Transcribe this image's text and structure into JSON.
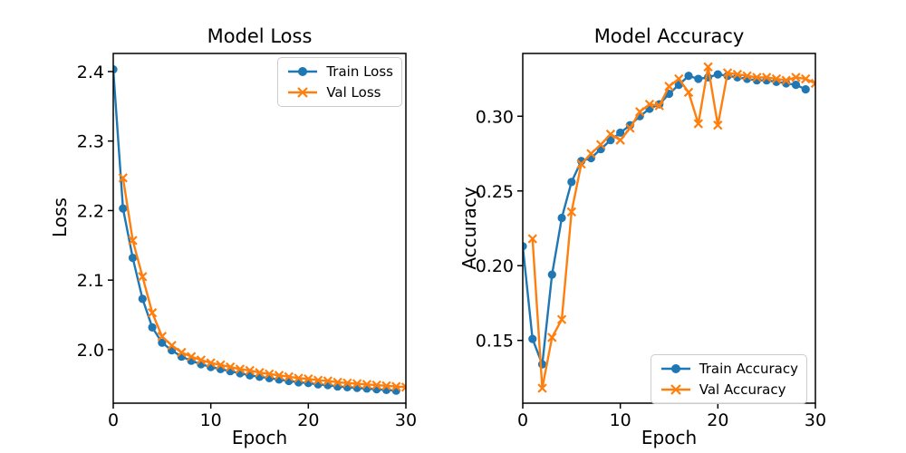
{
  "figure": {
    "background": "#ffffff",
    "axis_color": "#000000",
    "accent_blue": "#1f77b4",
    "accent_orange": "#ff7f0e"
  },
  "chart_data": [
    {
      "type": "line",
      "title": "Model Loss",
      "xlabel": "Epoch",
      "ylabel": "Loss",
      "xlim": [
        0,
        30
      ],
      "ylim": [
        1.923,
        2.426
      ],
      "xticks": [
        0,
        10,
        20,
        30
      ],
      "xtick_labels": [
        "0",
        "10",
        "20",
        "30"
      ],
      "yticks": [
        2.0,
        2.1,
        2.2,
        2.3,
        2.4
      ],
      "ytick_labels": [
        "2.0",
        "2.1",
        "2.2",
        "2.3",
        "2.4"
      ],
      "grid": false,
      "legend_position": "upper right",
      "series": [
        {
          "name": "Train Loss",
          "color": "#1f77b4",
          "marker": "circle",
          "x": [
            0,
            1,
            2,
            3,
            4,
            5,
            6,
            7,
            8,
            9,
            10,
            11,
            12,
            13,
            14,
            15,
            16,
            17,
            18,
            19,
            20,
            21,
            22,
            23,
            24,
            25,
            26,
            27,
            28,
            29
          ],
          "y": [
            2.403,
            2.203,
            2.132,
            2.073,
            2.032,
            2.01,
            1.999,
            1.99,
            1.984,
            1.979,
            1.975,
            1.972,
            1.969,
            1.966,
            1.963,
            1.961,
            1.959,
            1.957,
            1.955,
            1.953,
            1.952,
            1.95,
            1.949,
            1.947,
            1.946,
            1.945,
            1.944,
            1.943,
            1.942,
            1.941
          ]
        },
        {
          "name": "Val Loss",
          "color": "#ff7f0e",
          "marker": "x",
          "x": [
            1,
            2,
            3,
            4,
            5,
            6,
            7,
            8,
            9,
            10,
            11,
            12,
            13,
            14,
            15,
            16,
            17,
            18,
            19,
            20,
            21,
            22,
            23,
            24,
            25,
            26,
            27,
            28,
            29,
            30
          ],
          "y": [
            2.247,
            2.157,
            2.105,
            2.053,
            2.019,
            2.006,
            1.996,
            1.99,
            1.985,
            1.981,
            1.978,
            1.975,
            1.972,
            1.97,
            1.967,
            1.965,
            1.963,
            1.961,
            1.959,
            1.958,
            1.956,
            1.955,
            1.953,
            1.952,
            1.951,
            1.95,
            1.949,
            1.948,
            1.947,
            1.946
          ]
        }
      ]
    },
    {
      "type": "line",
      "title": "Model Accuracy",
      "xlabel": "Epoch",
      "ylabel": "Accuracy",
      "xlim": [
        0,
        30
      ],
      "ylim": [
        0.108,
        0.342
      ],
      "xticks": [
        0,
        10,
        20,
        30
      ],
      "xtick_labels": [
        "0",
        "10",
        "20",
        "30"
      ],
      "yticks": [
        0.15,
        0.2,
        0.25,
        0.3
      ],
      "ytick_labels": [
        "0.15",
        "0.20",
        "0.25",
        "0.30"
      ],
      "grid": false,
      "legend_position": "lower right",
      "series": [
        {
          "name": "Train Accuracy",
          "color": "#1f77b4",
          "marker": "circle",
          "x": [
            0,
            1,
            2,
            3,
            4,
            5,
            6,
            7,
            8,
            9,
            10,
            11,
            12,
            13,
            14,
            15,
            16,
            17,
            18,
            19,
            20,
            21,
            22,
            23,
            24,
            25,
            26,
            27,
            28,
            29
          ],
          "y": [
            0.213,
            0.151,
            0.134,
            0.194,
            0.232,
            0.256,
            0.27,
            0.272,
            0.278,
            0.284,
            0.289,
            0.294,
            0.3,
            0.305,
            0.308,
            0.315,
            0.321,
            0.327,
            0.325,
            0.326,
            0.328,
            0.327,
            0.326,
            0.325,
            0.324,
            0.324,
            0.323,
            0.322,
            0.321,
            0.318
          ]
        },
        {
          "name": "Val Accuracy",
          "color": "#ff7f0e",
          "marker": "x",
          "x": [
            1,
            2,
            3,
            4,
            5,
            6,
            7,
            8,
            9,
            10,
            11,
            12,
            13,
            14,
            15,
            16,
            17,
            18,
            19,
            20,
            21,
            22,
            23,
            24,
            25,
            26,
            27,
            28,
            29,
            30
          ],
          "y": [
            0.218,
            0.118,
            0.152,
            0.164,
            0.236,
            0.268,
            0.275,
            0.281,
            0.288,
            0.284,
            0.292,
            0.303,
            0.308,
            0.307,
            0.32,
            0.325,
            0.316,
            0.295,
            0.333,
            0.294,
            0.329,
            0.328,
            0.327,
            0.326,
            0.326,
            0.325,
            0.324,
            0.326,
            0.325,
            0.322
          ]
        }
      ]
    }
  ]
}
